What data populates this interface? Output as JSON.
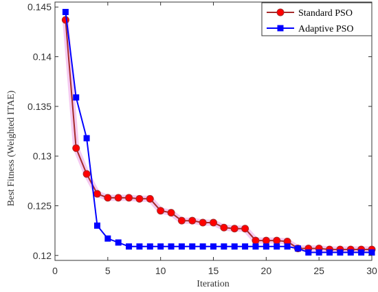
{
  "chart_data": {
    "type": "line",
    "xlabel": "Iteration",
    "ylabel": "Best Fitness (Weighted ITAE)",
    "xlim": [
      0,
      30
    ],
    "ylim": [
      0.1195,
      0.1455
    ],
    "xticks": [
      0,
      5,
      10,
      15,
      20,
      25,
      30
    ],
    "yticks": [
      0.12,
      0.125,
      0.13,
      0.135,
      0.14,
      0.145
    ],
    "ytick_labels": [
      "0.12",
      "0.125",
      "0.13",
      "0.135",
      "0.14",
      "0.145"
    ],
    "grid": false,
    "legend_position": "top-right",
    "x": [
      1,
      2,
      3,
      4,
      5,
      6,
      7,
      8,
      9,
      10,
      11,
      12,
      13,
      14,
      15,
      16,
      17,
      18,
      19,
      20,
      21,
      22,
      23,
      24,
      25,
      26,
      27,
      28,
      29,
      30
    ],
    "series": [
      {
        "name": "Standard PSO",
        "color": "#ff0000",
        "line_color": "#a52a2a",
        "marker": "circle",
        "values": [
          0.1437,
          0.1308,
          0.1282,
          0.1262,
          0.1258,
          0.1258,
          0.1258,
          0.1257,
          0.1257,
          0.1245,
          0.1243,
          0.1235,
          0.1235,
          0.1233,
          0.1233,
          0.1228,
          0.1227,
          0.1227,
          0.1215,
          0.1215,
          0.1215,
          0.1214,
          0.1207,
          0.1207,
          0.1207,
          0.1206,
          0.1206,
          0.1206,
          0.1206,
          0.1206
        ]
      },
      {
        "name": "Adaptive PSO",
        "color": "#0000ff",
        "line_color": "#0000ff",
        "marker": "square",
        "values": [
          0.1445,
          0.1359,
          0.1318,
          0.123,
          0.1217,
          0.1213,
          0.1209,
          0.1209,
          0.1209,
          0.1209,
          0.1209,
          0.1209,
          0.1209,
          0.1209,
          0.1209,
          0.1209,
          0.1209,
          0.1209,
          0.1209,
          0.1209,
          0.1209,
          0.1209,
          0.1207,
          0.1203,
          0.1203,
          0.1203,
          0.1203,
          0.1203,
          0.1203,
          0.1203
        ]
      }
    ]
  }
}
